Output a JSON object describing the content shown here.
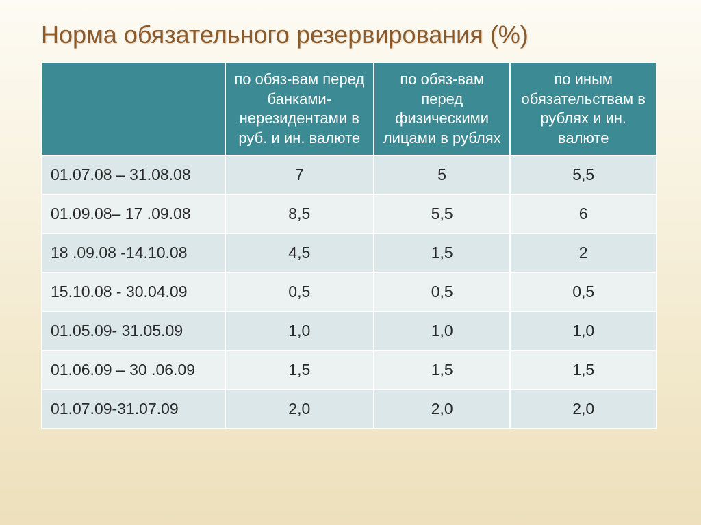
{
  "title": "Норма обязательного резервирования (%)",
  "table": {
    "columns": [
      "",
      "по обяз-вам перед банками-нерезидентами в руб. и ин. валюте",
      "по обяз-вам перед физическими лицами в рублях",
      "по иным обязательствам в рублях и ин. валюте"
    ],
    "col_widths": [
      "268px",
      "218px",
      "200px",
      "214px"
    ],
    "header_bg": "#3b8a94",
    "header_fg": "#ffffff",
    "row_bg_odd": "#dbe7e8",
    "row_bg_even": "#ecf2f2",
    "border_color": "#ffffff",
    "title_color": "#8a5a2a",
    "title_fontsize": 36,
    "cell_fontsize": 23,
    "header_fontsize": 22,
    "rows": [
      {
        "period": "01.07.08 – 31.08.08",
        "c1": "7",
        "c2": "5",
        "c3": "5,5"
      },
      {
        "period": "01.09.08– 17 .09.08",
        "c1": "8,5",
        "c2": "5,5",
        "c3": "6"
      },
      {
        "period": "18 .09.08  -14.10.08",
        "c1": "4,5",
        "c2": "1,5",
        "c3": "2"
      },
      {
        "period": "15.10.08 - 30.04.09",
        "c1": "0,5",
        "c2": "0,5",
        "c3": "0,5"
      },
      {
        "period": "01.05.09- 31.05.09",
        "c1": "1,0",
        "c2": "1,0",
        "c3": "1,0"
      },
      {
        "period": "01.06.09 – 30 .06.09",
        "c1": "1,5",
        "c2": "1,5",
        "c3": "1,5"
      },
      {
        "period": "01.07.09-31.07.09",
        "c1": "2,0",
        "c2": "2,0",
        "c3": "2,0"
      }
    ]
  }
}
